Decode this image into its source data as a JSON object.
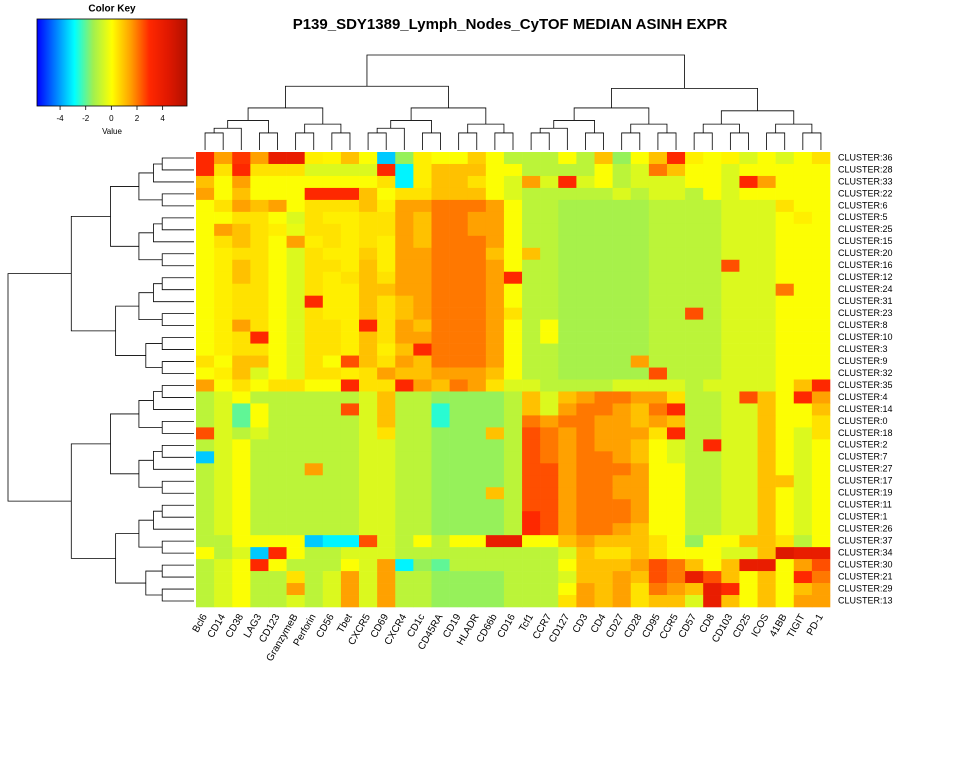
{
  "chart_data": {
    "type": "heatmap",
    "title": "P139_SDY1389_Lymph_Nodes_CyTOF  MEDIAN ASINH EXPR",
    "color_key": {
      "title": "Color Key",
      "label": "Value",
      "lim": [
        -5.8,
        5.9
      ],
      "ticks": [
        -4,
        -2,
        0,
        2,
        4
      ]
    },
    "colors": [
      "#0000ff",
      "#0080ff",
      "#00ffff",
      "#a0f050",
      "#ffff00",
      "#ffa000",
      "#ff2800",
      "#e01800",
      "#b01000"
    ],
    "columns": [
      "Bcl6",
      "CD14",
      "CD38",
      "LAG3",
      "CD123",
      "GranzymeB",
      "Perforin",
      "CD56",
      "Tbet",
      "CXCR5",
      "CD69",
      "CXCR4",
      "CD1c",
      "CD45RA",
      "CD19",
      "HLADR",
      "CD66b",
      "CD16",
      "Tcf1",
      "CCR7",
      "CD127",
      "CD3",
      "CD4",
      "CD27",
      "CD28",
      "CD95",
      "CCR5",
      "CD57",
      "CD8",
      "CD103",
      "CD25",
      "ICOS",
      "41BB",
      "TIGIT",
      "PD-1"
    ],
    "rows": [
      "CLUSTER:36",
      "CLUSTER:28",
      "CLUSTER:33",
      "CLUSTER:22",
      "CLUSTER:6",
      "CLUSTER:5",
      "CLUSTER:25",
      "CLUSTER:15",
      "CLUSTER:20",
      "CLUSTER:16",
      "CLUSTER:12",
      "CLUSTER:24",
      "CLUSTER:31",
      "CLUSTER:23",
      "CLUSTER:8",
      "CLUSTER:10",
      "CLUSTER:3",
      "CLUSTER:9",
      "CLUSTER:32",
      "CLUSTER:35",
      "CLUSTER:4",
      "CLUSTER:14",
      "CLUSTER:0",
      "CLUSTER:18",
      "CLUSTER:2",
      "CLUSTER:7",
      "CLUSTER:27",
      "CLUSTER:17",
      "CLUSTER:19",
      "CLUSTER:11",
      "CLUSTER:1",
      "CLUSTER:26",
      "CLUSTER:37",
      "CLUSTER:34",
      "CLUSTER:30",
      "CLUSTER:21",
      "CLUSTER:29",
      "CLUSTER:13"
    ],
    "values": [
      [
        3,
        1.5,
        2.8,
        1.5,
        4,
        4,
        0.3,
        0.2,
        1,
        0,
        -3.5,
        -1.5,
        0.3,
        0,
        0,
        0.8,
        0,
        -1,
        -1,
        -1,
        0,
        -1,
        1,
        -1.5,
        0,
        1,
        3,
        0.3,
        0,
        0.2,
        -0.5,
        0,
        -0.5,
        0,
        0.5
      ],
      [
        3,
        0.5,
        3,
        0.5,
        0.5,
        0.5,
        -0.5,
        -0.5,
        -0.5,
        -0.5,
        3,
        -3,
        0.3,
        1,
        1,
        1,
        0,
        0,
        -1,
        -1,
        -1,
        -1,
        0,
        -1,
        -0.5,
        2,
        1,
        0,
        0,
        -0.5,
        0,
        0,
        0,
        0,
        0
      ],
      [
        1,
        0,
        1.5,
        0,
        0,
        0,
        0,
        0,
        0,
        0,
        0.5,
        -3,
        0.3,
        1,
        1,
        0.5,
        0,
        -0.5,
        1.5,
        -0.5,
        3,
        -0.5,
        0,
        -1,
        -0.5,
        -0.5,
        -0.5,
        0,
        0,
        -0.5,
        3,
        1.5,
        0,
        0,
        0
      ],
      [
        1.5,
        0,
        1,
        0,
        0,
        0,
        3,
        3,
        3,
        1,
        0,
        0.5,
        0.5,
        1,
        1,
        1,
        0,
        -0.5,
        -1,
        -1,
        -1,
        -1,
        -1,
        -0.5,
        -1,
        -0.5,
        -0.5,
        -1,
        0,
        -0.5,
        0,
        0,
        0,
        0,
        0
      ],
      [
        0,
        0.5,
        1.5,
        1,
        1.5,
        0,
        0.5,
        0.5,
        0.5,
        1,
        0.3,
        1.5,
        1.5,
        2,
        2,
        2,
        1.5,
        0,
        -1,
        -1,
        -1.3,
        -1.3,
        -1.3,
        -1.3,
        -1.3,
        -1,
        -1,
        -1,
        -1,
        -0.5,
        -0.5,
        -0.5,
        0.5,
        0,
        0
      ],
      [
        0,
        0,
        0.5,
        0.5,
        0,
        -0.5,
        0.5,
        0.3,
        0.3,
        0.5,
        0.5,
        1.5,
        1,
        2,
        2,
        1.5,
        1.5,
        0,
        -1,
        -1,
        -1.3,
        -1.3,
        -1.3,
        -1.3,
        -1.3,
        -1,
        -1,
        -1,
        -1,
        -0.5,
        -0.5,
        -0.5,
        0,
        0.3,
        0
      ],
      [
        0,
        1.5,
        1,
        0.5,
        0.3,
        -0.3,
        0.5,
        0.5,
        0.3,
        0.5,
        0.5,
        1.5,
        1,
        2,
        2,
        1.5,
        1.5,
        0,
        -1,
        -1,
        -1.3,
        -1.3,
        -1.3,
        -1.3,
        -1.3,
        -1,
        -1,
        -1,
        -1,
        -0.5,
        -0.5,
        -0.5,
        0,
        0,
        0
      ],
      [
        0,
        0.5,
        1,
        0.5,
        0,
        1.5,
        0.3,
        0.5,
        0.3,
        0.5,
        0.3,
        1.5,
        1,
        2,
        2,
        2,
        1.5,
        0,
        -1,
        -1,
        -1.3,
        -1.3,
        -1.3,
        -1.3,
        -1.3,
        -1,
        -1,
        -1,
        -1,
        -0.5,
        -0.5,
        -0.5,
        0,
        0,
        0
      ],
      [
        0,
        0.3,
        0.5,
        0.5,
        0,
        -0.5,
        0.5,
        0.3,
        0.3,
        0.8,
        0.3,
        1.5,
        1.5,
        2,
        2,
        2,
        1,
        0,
        1,
        -1,
        -1.3,
        -1.3,
        -1.3,
        -1.3,
        -1.3,
        -1,
        -1,
        -1,
        -1,
        -0.5,
        -0.5,
        -0.5,
        0,
        0,
        0
      ],
      [
        0,
        0.3,
        1,
        0.5,
        0,
        -0.5,
        0.5,
        0.5,
        0.3,
        1,
        0.3,
        1.5,
        1.5,
        2,
        2,
        2,
        1.5,
        0,
        -1,
        -1,
        -1.3,
        -1.3,
        -1.3,
        -1.3,
        -1.3,
        -1,
        -1,
        -1,
        -1,
        2.5,
        -0.5,
        -0.5,
        0,
        0,
        0
      ],
      [
        0,
        0.3,
        1,
        0.5,
        0,
        -0.5,
        0.5,
        0.3,
        0.5,
        1,
        0.5,
        1.5,
        1.5,
        2,
        2,
        2,
        1.5,
        3,
        -1,
        -1,
        -1.3,
        -1.3,
        -1.3,
        -1.3,
        -1.3,
        -1,
        -1,
        -1,
        -1,
        -0.5,
        -0.5,
        -0.5,
        0,
        0,
        0
      ],
      [
        0,
        0.3,
        0.5,
        0.5,
        0,
        -0.5,
        0.5,
        0.3,
        0.3,
        1,
        1,
        1.5,
        1.5,
        2,
        2,
        2,
        1.5,
        0,
        -1,
        -1,
        -1.3,
        -1.3,
        -1.3,
        -1.3,
        -1.3,
        -1,
        -1,
        -1,
        -1,
        -0.5,
        -0.5,
        -0.5,
        2,
        0,
        0
      ],
      [
        0,
        0.3,
        0.5,
        0.5,
        0,
        -0.5,
        3,
        0.3,
        0.3,
        1,
        0.5,
        1,
        1.5,
        2,
        2,
        2,
        1.5,
        0,
        -1,
        -1,
        -1.3,
        -1.3,
        -1.3,
        -1.3,
        -1.3,
        -1,
        -1,
        -1,
        -1,
        -0.5,
        -0.5,
        -0.5,
        0,
        0,
        0
      ],
      [
        0,
        0.3,
        0.5,
        0.5,
        0,
        -0.5,
        0.5,
        0.3,
        0.3,
        1,
        0.5,
        1,
        1.5,
        2,
        2,
        2,
        1.5,
        0.5,
        -1,
        -1,
        -1.3,
        -1.3,
        -1.3,
        -1.3,
        -1.3,
        -1,
        -1,
        2.5,
        -1,
        -0.5,
        -0.5,
        -0.5,
        0,
        0,
        0
      ],
      [
        0,
        0.3,
        1.5,
        0.5,
        0,
        -0.5,
        0.5,
        0.5,
        0.3,
        3,
        0.5,
        1.5,
        1,
        2,
        2,
        2,
        1.5,
        0,
        -1,
        0,
        -1.3,
        -1.3,
        -1.3,
        -1.3,
        -1.3,
        -1,
        -1,
        -1,
        -1,
        -0.5,
        -0.5,
        -0.5,
        0,
        0,
        0
      ],
      [
        0,
        0.3,
        0.5,
        3,
        0,
        -0.5,
        0.5,
        0.5,
        0.3,
        1,
        0.5,
        1.5,
        1.5,
        2,
        2,
        2,
        1.5,
        0,
        -1,
        0,
        -1.3,
        -1.3,
        -1.3,
        -1.3,
        -1.3,
        -1,
        -1,
        -1,
        -1,
        -0.5,
        -0.5,
        -0.5,
        0,
        0,
        0
      ],
      [
        0,
        0.3,
        0.5,
        0.5,
        0,
        -0.5,
        0.5,
        0.5,
        0.3,
        1,
        0.3,
        1,
        3,
        2,
        2,
        2,
        1.5,
        0,
        -1,
        -1,
        -1.3,
        -1.3,
        -1.3,
        -1.3,
        -1.3,
        -1,
        -1,
        -1,
        -1,
        -0.5,
        -0.5,
        -0.5,
        0,
        0,
        0
      ],
      [
        0.5,
        0,
        1,
        1,
        0,
        -0.5,
        0.5,
        0,
        2.5,
        1,
        0.5,
        1.5,
        1,
        2,
        2,
        2,
        1.5,
        0,
        -1,
        -1,
        -1.3,
        -1.3,
        -1.3,
        -1.3,
        1.5,
        -1,
        -1,
        -1,
        -1,
        -0.5,
        -0.5,
        -0.5,
        0,
        0,
        0
      ],
      [
        0,
        0.3,
        1,
        -0.5,
        0,
        -0.5,
        0.5,
        0.5,
        0.3,
        0.5,
        1.5,
        1,
        1,
        1.5,
        1.5,
        1.5,
        1,
        0,
        -1,
        -1,
        -1.3,
        -1.3,
        -1.3,
        -1.3,
        -1.3,
        2.5,
        -1,
        -1,
        -1,
        -0.5,
        -0.5,
        -0.5,
        0,
        0,
        0
      ],
      [
        1.5,
        0,
        0.5,
        0,
        0.5,
        0.5,
        0,
        0,
        3,
        0.5,
        0.5,
        3,
        1.5,
        1,
        2,
        1.5,
        0.5,
        -0.5,
        -0.5,
        -1,
        -1,
        -1,
        -1,
        -0.5,
        -0.5,
        -0.5,
        -0.5,
        -1,
        -0.5,
        -0.5,
        -0.5,
        -0.5,
        0,
        1,
        3
      ],
      [
        -1,
        -0.5,
        0,
        -1,
        -1,
        -1,
        -1,
        -1,
        -1,
        -0.5,
        1,
        -1,
        -1,
        -1.5,
        -1.5,
        -1.5,
        -1.5,
        -1,
        1,
        -0.5,
        1,
        1.5,
        2,
        2,
        1.5,
        1.5,
        0.5,
        -1,
        -1,
        -0.5,
        2.5,
        1,
        0,
        3,
        1.5
      ],
      [
        -1,
        -0.5,
        -2,
        0,
        -1,
        -1,
        -1,
        -1,
        2.5,
        -0.5,
        1,
        -1,
        -1,
        -2.5,
        -1.5,
        -1.5,
        -1.5,
        -1,
        1,
        -0.5,
        1.5,
        2,
        2,
        1.5,
        1,
        2,
        3,
        -1,
        -1,
        -0.5,
        -0.5,
        1,
        0,
        0,
        1
      ],
      [
        -1,
        -0.5,
        -2,
        0,
        -1,
        -1,
        -1,
        -1,
        -1,
        -0.5,
        1,
        -1,
        -1,
        -2.5,
        -1.5,
        -1.5,
        -1.5,
        -1,
        2,
        1.5,
        2,
        2,
        1.5,
        1.5,
        1,
        1.5,
        1,
        -1,
        -1,
        -0.5,
        -0.5,
        1,
        0,
        0,
        0.5
      ],
      [
        2.5,
        -0.5,
        -1,
        -0.5,
        -1,
        -1,
        -1,
        -1,
        -1,
        -0.5,
        0.5,
        -1,
        -1,
        -1.5,
        -1.5,
        -1.5,
        1,
        -1,
        2.5,
        2,
        1.5,
        2,
        1.5,
        1.5,
        1.5,
        0.5,
        3,
        -1,
        -1,
        -0.5,
        -0.5,
        1,
        0,
        -0.5,
        0.5
      ],
      [
        -1,
        -0.5,
        0,
        -1,
        -1,
        -1,
        -1,
        -1,
        -1,
        -0.5,
        -0.5,
        -1,
        -1,
        -1.5,
        -1.5,
        -1.5,
        -1.5,
        -1,
        2.5,
        2,
        1.5,
        2,
        1.5,
        1.5,
        1,
        0,
        -0.5,
        -1,
        3,
        -0.5,
        -0.5,
        1,
        0,
        -0.5,
        0
      ],
      [
        -3.5,
        -0.5,
        0,
        -1,
        -1,
        -1,
        -1,
        -1,
        -1,
        -0.5,
        -0.5,
        -1,
        -1,
        -1.5,
        -1.5,
        -1.5,
        -1.5,
        -1,
        2.5,
        2,
        1.5,
        2,
        2,
        1.5,
        1,
        0,
        -0.5,
        -1,
        -1,
        -0.5,
        -0.5,
        1,
        0,
        -0.5,
        0
      ],
      [
        -1,
        -0.5,
        0,
        -1,
        -1,
        -1,
        1.5,
        -1,
        -1,
        -0.5,
        -0.5,
        -1,
        -1,
        -1.5,
        -1.5,
        -1.5,
        -1.5,
        -1,
        2.5,
        2.5,
        1.5,
        2,
        2,
        2,
        1.5,
        0,
        0,
        -1,
        -1,
        -0.5,
        -0.5,
        1,
        0,
        -0.5,
        0
      ],
      [
        -1,
        -0.5,
        0,
        -1,
        -1,
        -1,
        -1,
        -1,
        -1,
        -0.5,
        -0.5,
        -1,
        -1,
        -1.5,
        -1.5,
        -1.5,
        -1.5,
        -1,
        2.5,
        2.5,
        1.5,
        2,
        2,
        1.5,
        1.5,
        0,
        0,
        -1,
        -1,
        -0.5,
        -0.5,
        1,
        1,
        -0.5,
        0
      ],
      [
        -1,
        -0.5,
        0,
        -1,
        -1,
        -1,
        -1,
        -1,
        -1,
        -0.5,
        -0.5,
        -1,
        -1,
        -1.5,
        -1.5,
        -1.5,
        1,
        -1,
        2.5,
        2.5,
        1.5,
        2,
        2,
        1.5,
        1.5,
        0,
        0,
        -1,
        -1,
        -0.5,
        -0.5,
        1,
        0,
        -0.5,
        0
      ],
      [
        -1,
        -0.5,
        0,
        -1,
        -1,
        -1,
        -1,
        -1,
        -1,
        -0.5,
        -0.5,
        -1,
        -1,
        -1.5,
        -1.5,
        -1.5,
        -1.5,
        -1,
        2.5,
        2.5,
        1.5,
        2,
        2,
        2,
        1.5,
        0,
        0,
        -1,
        -1,
        -0.5,
        -0.5,
        1,
        0,
        -0.5,
        0
      ],
      [
        -1,
        -0.5,
        0,
        -1,
        -1,
        -1,
        -1,
        -1,
        -1,
        -0.5,
        -0.5,
        -1,
        -1,
        -1.5,
        -1.5,
        -1.5,
        -1.5,
        -1,
        3,
        2.5,
        1.5,
        2,
        2,
        2,
        1.5,
        0,
        0,
        -1,
        -1,
        -0.5,
        -0.5,
        1,
        0,
        -0.5,
        0
      ],
      [
        -1,
        -0.5,
        0,
        -1,
        -1,
        -1,
        -1,
        -1,
        -1,
        -0.5,
        -0.5,
        -1,
        -1,
        -1.5,
        -1.5,
        -1.5,
        -1.5,
        -1,
        3,
        2.5,
        1.5,
        2,
        2,
        1.5,
        1,
        0,
        0,
        -1,
        -1,
        -0.5,
        -0.5,
        1,
        0,
        -0.5,
        0
      ],
      [
        -1,
        -1,
        0,
        0,
        0,
        0,
        -3.5,
        -3,
        -3,
        2.5,
        -0.5,
        -1,
        0,
        -1,
        0,
        0,
        4,
        4,
        0,
        0,
        1,
        1.5,
        1,
        1,
        1,
        0.5,
        0,
        -1.5,
        0,
        0,
        1,
        1,
        0.5,
        -1,
        0
      ],
      [
        0,
        -1,
        -0.5,
        -3.5,
        3,
        0,
        -1,
        -1,
        -0.5,
        -0.5,
        -0.5,
        -1,
        -1,
        -1,
        -1,
        -1,
        -1,
        -1,
        -1,
        -1,
        -0.5,
        1,
        0.5,
        0.5,
        1,
        0.5,
        0,
        0,
        0,
        -0.5,
        -0.5,
        1,
        4.5,
        4,
        4
      ],
      [
        -1,
        -0.5,
        0,
        3,
        0,
        -1,
        -1,
        -1,
        0,
        -0.5,
        1.5,
        -3,
        -1.5,
        -2,
        -1,
        -1,
        -1,
        -1,
        -1,
        -1,
        0,
        1,
        1,
        1,
        1.5,
        2.5,
        2,
        1,
        0,
        1,
        4,
        4,
        0,
        1.5,
        2.5
      ],
      [
        -1,
        -0.5,
        0,
        -1,
        -1,
        0.5,
        -1,
        -0.5,
        1.5,
        -0.5,
        1.5,
        -1,
        -1,
        -1.5,
        -1.5,
        -1.5,
        -1.5,
        -1,
        -1,
        -1,
        -0.5,
        1,
        1,
        1.5,
        1,
        2.5,
        2,
        4,
        2.5,
        1,
        0,
        1,
        0,
        3,
        2
      ],
      [
        -1,
        -0.5,
        0,
        -1,
        -1,
        1.5,
        -1,
        -0.5,
        1.5,
        -0.5,
        1.5,
        -1,
        -1,
        -1.5,
        -1.5,
        -1.5,
        -1.5,
        -1,
        -1,
        -1,
        0,
        1.5,
        1,
        1.5,
        0.5,
        2,
        1.5,
        1,
        4,
        3,
        0,
        1,
        0,
        1,
        1.5
      ],
      [
        -1,
        -0.5,
        0,
        -1,
        -1,
        -0.5,
        -1,
        -0.5,
        1.5,
        -0.5,
        1.5,
        -1,
        -1,
        -1.5,
        -1.5,
        -1.5,
        -1.5,
        -1,
        -1,
        -1,
        0.5,
        1.5,
        1,
        1.5,
        0.5,
        1,
        1,
        -0.5,
        4,
        1,
        0,
        1,
        0,
        1.5,
        1.5
      ]
    ]
  }
}
